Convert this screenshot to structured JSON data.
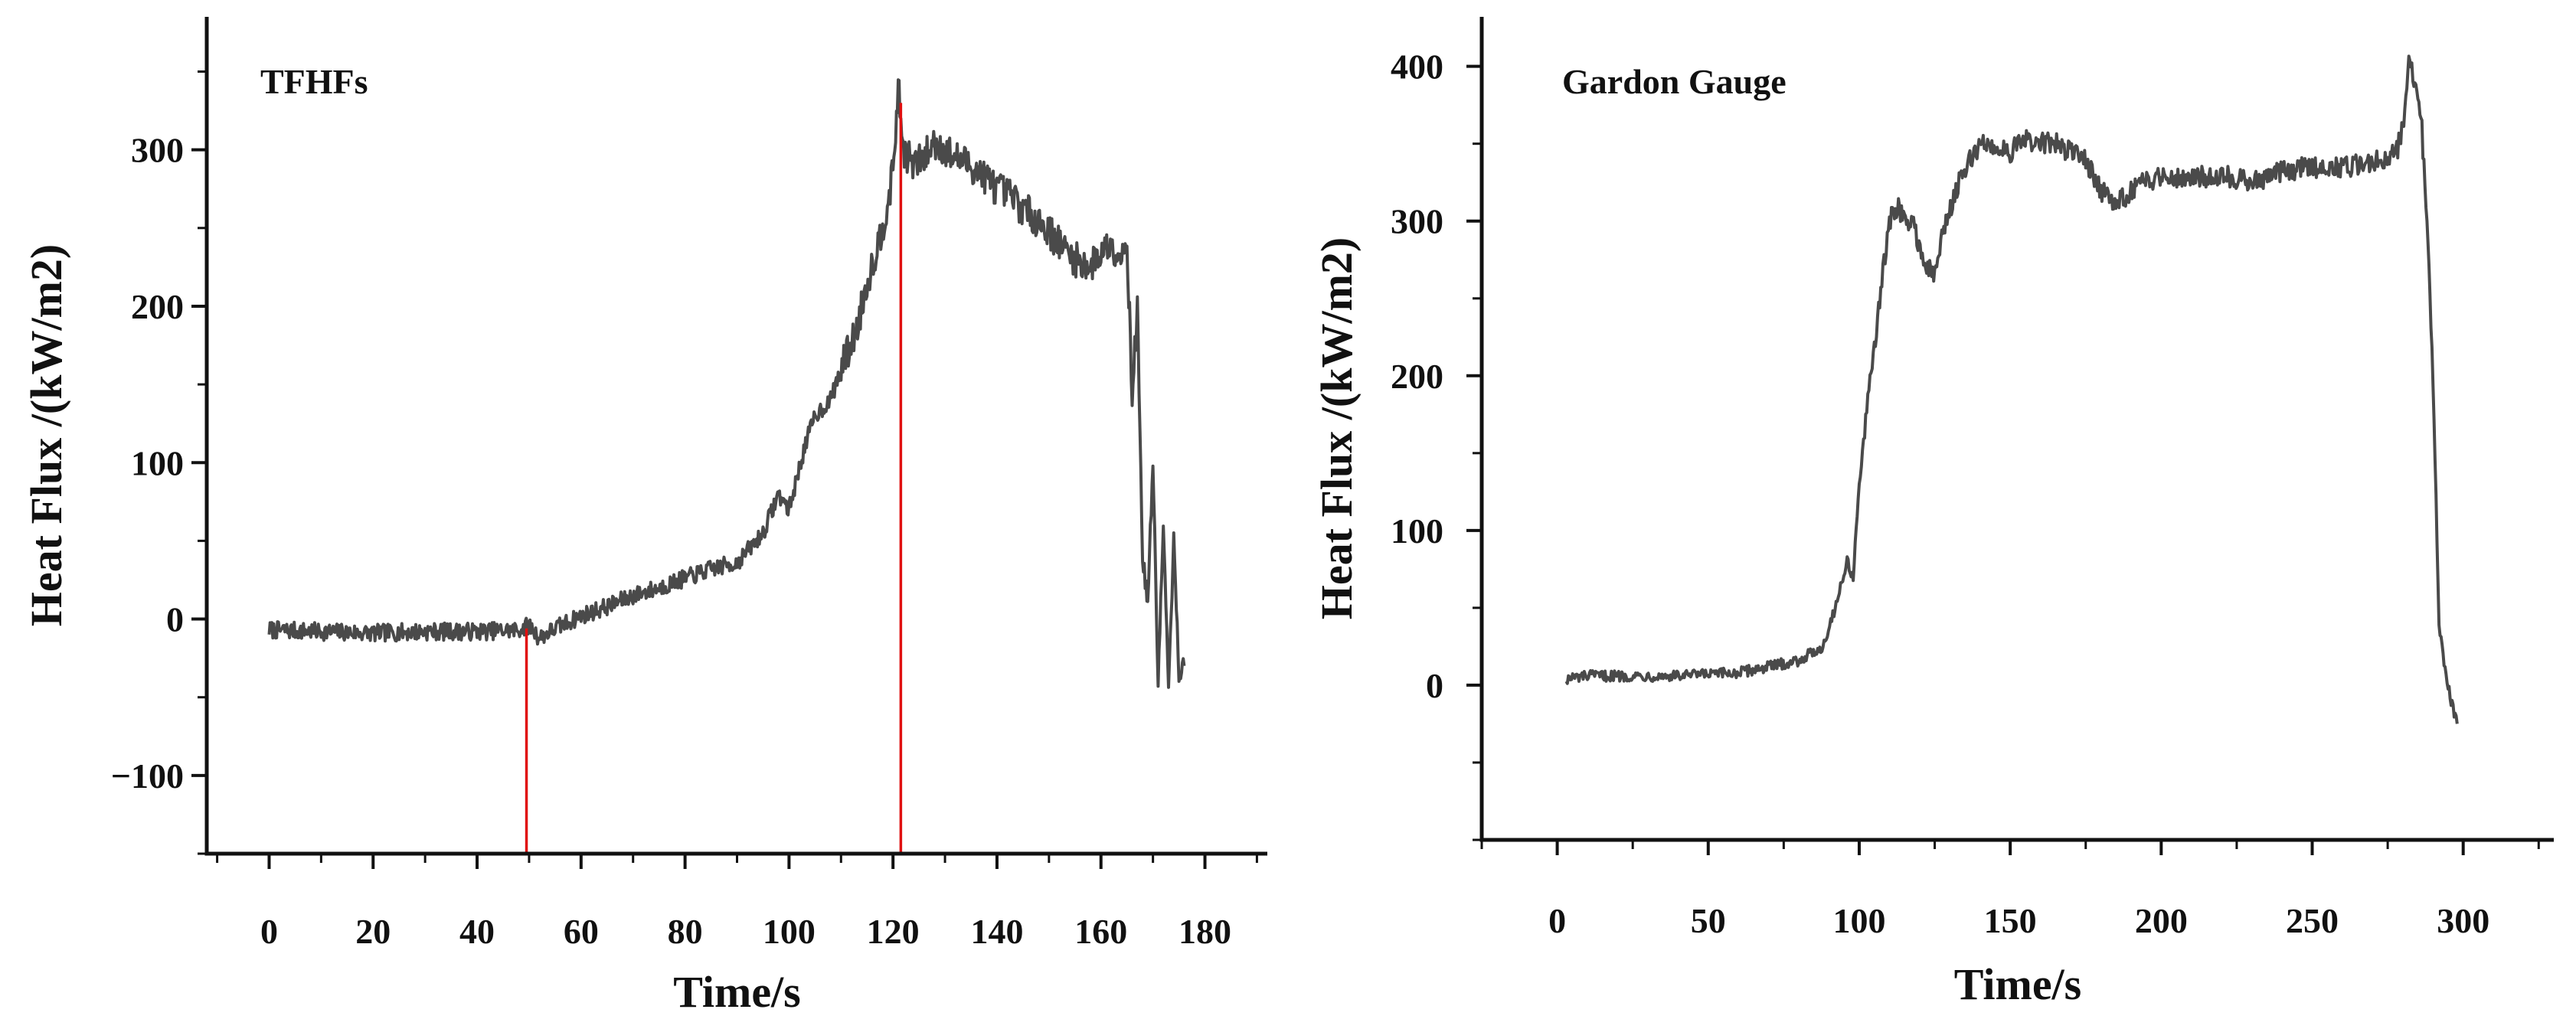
{
  "chart_data": [
    {
      "type": "line",
      "title": "TFHFs",
      "xlabel": "Time/s",
      "ylabel": "Heat Flux /(kW/m2)",
      "xlim": [
        -12,
        192
      ],
      "ylim": [
        -150,
        385
      ],
      "x_ticks": [
        0,
        20,
        40,
        60,
        80,
        100,
        120,
        140,
        160,
        180
      ],
      "y_ticks": [
        -100,
        0,
        100,
        200,
        300
      ],
      "y_tick_labels": [
        "−100",
        "0",
        "100",
        "200",
        "300"
      ],
      "grid": false,
      "vertical_markers": [
        {
          "x": 49.5,
          "y_top": -6,
          "color": "#e01010"
        },
        {
          "x": 121.5,
          "y_top": 330,
          "color": "#e01010"
        }
      ],
      "series": [
        {
          "x": [
            0,
            10,
            20,
            30,
            40,
            48,
            50,
            52,
            55,
            60,
            65,
            70,
            75,
            80,
            85,
            90,
            95,
            98,
            100,
            103,
            105,
            108,
            110,
            113,
            115,
            118,
            120,
            121,
            122,
            124,
            126,
            128,
            130,
            132,
            135,
            138,
            140,
            143,
            145,
            148,
            150,
            152,
            155,
            158,
            160,
            162,
            164,
            165,
            166,
            167,
            168,
            169,
            170,
            171,
            172,
            173,
            174,
            175,
            176
          ],
          "y": [
            -7,
            -8,
            -9,
            -8,
            -8,
            -7,
            -4,
            -12,
            -6,
            2,
            8,
            15,
            20,
            26,
            32,
            36,
            55,
            80,
            70,
            110,
            130,
            140,
            160,
            185,
            215,
            250,
            285,
            340,
            300,
            290,
            295,
            305,
            300,
            295,
            290,
            282,
            275,
            270,
            262,
            255,
            248,
            240,
            230,
            225,
            235,
            240,
            232,
            245,
            140,
            200,
            40,
            10,
            100,
            -40,
            60,
            -45,
            50,
            -35,
            -30
          ],
          "noise": 8
        }
      ]
    },
    {
      "type": "line",
      "title": "Gardon  Gauge",
      "xlabel": "Time/s",
      "ylabel": "Heat Flux /(kW/m2)",
      "xlim": [
        -25,
        330
      ],
      "ylim": [
        -100,
        432
      ],
      "x_ticks": [
        0,
        50,
        100,
        150,
        200,
        250,
        300
      ],
      "y_ticks": [
        0,
        100,
        200,
        300,
        400
      ],
      "y_tick_labels": [
        "0",
        "100",
        "200",
        "300",
        "400"
      ],
      "grid": false,
      "vertical_markers": [],
      "series": [
        {
          "x": [
            3,
            10,
            20,
            40,
            60,
            70,
            80,
            88,
            92,
            96,
            98,
            100,
            105,
            110,
            113,
            115,
            118,
            122,
            125,
            128,
            132,
            137,
            140,
            145,
            150,
            155,
            160,
            165,
            170,
            175,
            180,
            185,
            190,
            200,
            210,
            220,
            230,
            240,
            250,
            260,
            270,
            278,
            280,
            282,
            284,
            286,
            288,
            290,
            292,
            294,
            296,
            298
          ],
          "y": [
            4,
            6,
            6,
            6,
            8,
            12,
            16,
            25,
            50,
            80,
            70,
            130,
            220,
            300,
            310,
            300,
            298,
            270,
            265,
            295,
            320,
            340,
            350,
            348,
            345,
            352,
            350,
            350,
            345,
            340,
            320,
            310,
            320,
            330,
            328,
            330,
            325,
            332,
            335,
            335,
            338,
            345,
            360,
            405,
            390,
            370,
            300,
            200,
            40,
            10,
            -10,
            -25
          ],
          "noise": 5
        }
      ]
    }
  ]
}
